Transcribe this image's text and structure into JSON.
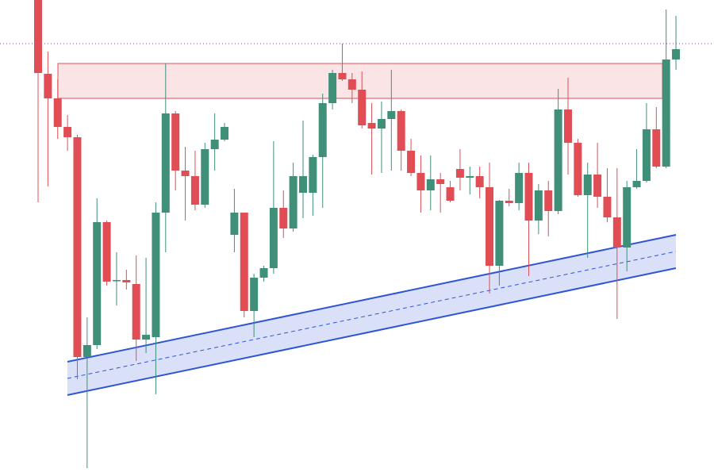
{
  "chart_data": {
    "type": "candlestick",
    "up_color": "#3f8f79",
    "down_color": "#e04d54",
    "ylim": [
      0,
      600
    ],
    "open": [
      600,
      507,
      476,
      440,
      427,
      150,
      165,
      320,
      246,
      247,
      242,
      172,
      175,
      332,
      457,
      385,
      378,
      342,
      412,
      424,
      304,
      332,
      208,
      250,
      262,
      338,
      312,
      357,
      357,
      402,
      470,
      508,
      500,
      487,
      445,
      438,
      450,
      460,
      410,
      382,
      360,
      374,
      364,
      387,
      376,
      378,
      364,
      265,
      347,
      344,
      382,
      322,
      360,
      334,
      462,
      420,
      354,
      380,
      352,
      326,
      288,
      364,
      372,
      437,
      390,
      525
    ],
    "high": [
      600,
      535,
      500,
      455,
      430,
      200,
      350,
      322,
      282,
      260,
      278,
      275,
      345,
      520,
      460,
      415,
      410,
      420,
      457,
      445,
      362,
      332,
      255,
      265,
      422,
      360,
      395,
      448,
      405,
      482,
      512,
      545,
      508,
      510,
      470,
      472,
      512,
      462,
      425,
      404,
      404,
      382,
      372,
      412,
      390,
      390,
      395,
      348,
      362,
      395,
      395,
      368,
      372,
      488,
      502,
      425,
      395,
      420,
      388,
      388,
      372,
      412,
      470,
      465,
      588,
      580
    ],
    "low": [
      345,
      365,
      425,
      410,
      122,
      10,
      160,
      240,
      215,
      235,
      145,
      155,
      103,
      282,
      360,
      322,
      335,
      338,
      385,
      422,
      282,
      200,
      175,
      245,
      255,
      300,
      308,
      325,
      328,
      338,
      462,
      498,
      470,
      438,
      380,
      382,
      385,
      385,
      378,
      332,
      335,
      332,
      345,
      360,
      355,
      350,
      230,
      240,
      340,
      335,
      252,
      305,
      302,
      330,
      380,
      352,
      275,
      338,
      320,
      198,
      258,
      362,
      370,
      388,
      388,
      512
    ],
    "close": [
      508,
      476,
      440,
      427,
      150,
      165,
      320,
      245,
      247,
      244,
      172,
      178,
      332,
      457,
      385,
      378,
      342,
      412,
      424,
      440,
      332,
      208,
      250,
      262,
      338,
      312,
      378,
      378,
      402,
      470,
      508,
      500,
      487,
      442,
      438,
      450,
      460,
      410,
      382,
      360,
      374,
      368,
      347,
      376,
      378,
      364,
      265,
      347,
      344,
      382,
      322,
      360,
      334,
      462,
      420,
      354,
      380,
      352,
      326,
      288,
      364,
      372,
      437,
      390,
      525,
      538
    ],
    "resistance_zone": {
      "bottom": 476,
      "top": 520,
      "color": "#e04d54"
    },
    "dotted_level": {
      "value": 545,
      "color": "#7b3fa0"
    },
    "channel": {
      "upper": [
        144,
        304
      ],
      "lower": [
        102,
        262
      ],
      "color": "#2f55d4"
    }
  }
}
